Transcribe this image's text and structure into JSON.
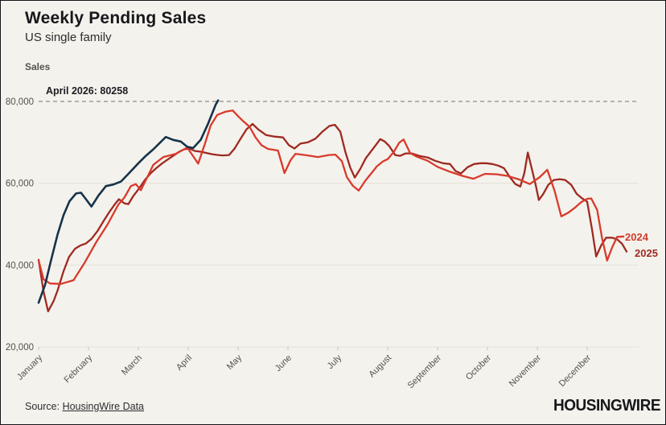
{
  "header": {
    "title": "Weekly Pending Sales",
    "subtitle": "US single family"
  },
  "annotation_label": "April 2026: 80258",
  "footer": {
    "source_prefix": "Source: ",
    "source_link_text": "HousingWire Data",
    "logo_text": "HOUSINGWIRE"
  },
  "colors": {
    "background": "#f4f2ec",
    "border": "#15151a",
    "gridline": "#e4e1da",
    "dashed_reference": "#8f8c86",
    "axis_text": "#55524c",
    "series_2026": "#16334a",
    "series_2024": "#d93a2d",
    "series_2025": "#9e2a22"
  },
  "chart_data": {
    "type": "line",
    "title": "Weekly Pending Sales",
    "subtitle": "US single family",
    "ylabel": "Sales",
    "xlabel": "",
    "ylim": [
      20000,
      83500
    ],
    "yticks": [
      20000,
      40000,
      60000,
      80000
    ],
    "ytick_labels": [
      "20,000",
      "40,000",
      "60,000",
      "80,000"
    ],
    "x_unit": "month (0 = Jan 1, fractional = weeks within year)",
    "xtick_labels": [
      "January",
      "February",
      "March",
      "April",
      "May",
      "June",
      "July",
      "August",
      "September",
      "October",
      "November",
      "December"
    ],
    "grid": "horizontal only",
    "legend_position": "inline end-of-line labels",
    "reference_line": {
      "value": 80000,
      "style": "dashed",
      "label": "April 2026: 80258",
      "annotated_point": 80258
    },
    "series": [
      {
        "name": "2025",
        "end_label": "2025",
        "color": "#9e2a22",
        "points": [
          [
            0.0,
            41300
          ],
          [
            0.1,
            33500
          ],
          [
            0.19,
            28700
          ],
          [
            0.3,
            31200
          ],
          [
            0.38,
            33800
          ],
          [
            0.5,
            38500
          ],
          [
            0.61,
            42000
          ],
          [
            0.73,
            44000
          ],
          [
            0.84,
            44800
          ],
          [
            0.95,
            45300
          ],
          [
            1.06,
            46400
          ],
          [
            1.18,
            48300
          ],
          [
            1.3,
            50700
          ],
          [
            1.42,
            53000
          ],
          [
            1.53,
            54900
          ],
          [
            1.61,
            56100
          ],
          [
            1.72,
            55100
          ],
          [
            1.8,
            54900
          ],
          [
            1.9,
            56900
          ],
          [
            2.02,
            58800
          ],
          [
            2.13,
            60800
          ],
          [
            2.25,
            62500
          ],
          [
            2.36,
            63700
          ],
          [
            2.48,
            64900
          ],
          [
            2.6,
            65900
          ],
          [
            2.7,
            66700
          ],
          [
            2.82,
            67700
          ],
          [
            2.92,
            68300
          ],
          [
            3.02,
            68500
          ],
          [
            3.13,
            67900
          ],
          [
            3.25,
            67700
          ],
          [
            3.37,
            67400
          ],
          [
            3.48,
            67100
          ],
          [
            3.6,
            66900
          ],
          [
            3.7,
            66800
          ],
          [
            3.82,
            66900
          ],
          [
            3.93,
            68500
          ],
          [
            4.05,
            70900
          ],
          [
            4.17,
            73200
          ],
          [
            4.29,
            74500
          ],
          [
            4.4,
            73200
          ],
          [
            4.56,
            71800
          ],
          [
            4.73,
            71400
          ],
          [
            4.9,
            71200
          ],
          [
            5.02,
            69300
          ],
          [
            5.13,
            68500
          ],
          [
            5.25,
            69700
          ],
          [
            5.4,
            70000
          ],
          [
            5.55,
            70900
          ],
          [
            5.7,
            72700
          ],
          [
            5.83,
            74000
          ],
          [
            5.94,
            74300
          ],
          [
            6.05,
            72600
          ],
          [
            6.15,
            67700
          ],
          [
            6.25,
            63800
          ],
          [
            6.34,
            61400
          ],
          [
            6.45,
            63500
          ],
          [
            6.56,
            66100
          ],
          [
            6.66,
            67700
          ],
          [
            6.76,
            69300
          ],
          [
            6.85,
            70800
          ],
          [
            6.94,
            70200
          ],
          [
            7.03,
            69100
          ],
          [
            7.15,
            66900
          ],
          [
            7.25,
            66700
          ],
          [
            7.36,
            67300
          ],
          [
            7.48,
            67300
          ],
          [
            7.63,
            66700
          ],
          [
            7.8,
            66300
          ],
          [
            7.95,
            65500
          ],
          [
            8.11,
            64900
          ],
          [
            8.25,
            64700
          ],
          [
            8.36,
            63000
          ],
          [
            8.47,
            62400
          ],
          [
            8.6,
            63900
          ],
          [
            8.73,
            64700
          ],
          [
            8.86,
            64900
          ],
          [
            8.98,
            64900
          ],
          [
            9.1,
            64700
          ],
          [
            9.22,
            64300
          ],
          [
            9.33,
            63700
          ],
          [
            9.45,
            61500
          ],
          [
            9.56,
            59800
          ],
          [
            9.66,
            59200
          ],
          [
            9.74,
            62500
          ],
          [
            9.81,
            67500
          ],
          [
            9.89,
            63500
          ],
          [
            9.97,
            59500
          ],
          [
            10.03,
            55900
          ],
          [
            10.12,
            57400
          ],
          [
            10.22,
            59600
          ],
          [
            10.33,
            60800
          ],
          [
            10.45,
            61000
          ],
          [
            10.56,
            60800
          ],
          [
            10.68,
            59600
          ],
          [
            10.79,
            57400
          ],
          [
            10.9,
            56300
          ],
          [
            11.0,
            55500
          ],
          [
            11.1,
            48500
          ],
          [
            11.18,
            42100
          ],
          [
            11.28,
            44800
          ],
          [
            11.38,
            46700
          ],
          [
            11.5,
            46700
          ],
          [
            11.6,
            46300
          ],
          [
            11.7,
            45200
          ],
          [
            11.79,
            43300
          ]
        ]
      },
      {
        "name": "2024",
        "end_label": "2024",
        "color": "#d93a2d",
        "points": [
          [
            0.0,
            41100
          ],
          [
            0.1,
            36500
          ],
          [
            0.23,
            35500
          ],
          [
            0.45,
            35400
          ],
          [
            0.7,
            36300
          ],
          [
            0.92,
            40500
          ],
          [
            1.15,
            45500
          ],
          [
            1.38,
            49900
          ],
          [
            1.6,
            54800
          ],
          [
            1.72,
            56500
          ],
          [
            1.85,
            59300
          ],
          [
            1.95,
            59800
          ],
          [
            2.05,
            58300
          ],
          [
            2.18,
            61500
          ],
          [
            2.3,
            64500
          ],
          [
            2.5,
            66400
          ],
          [
            2.75,
            67200
          ],
          [
            2.98,
            68700
          ],
          [
            3.1,
            66600
          ],
          [
            3.2,
            64800
          ],
          [
            3.33,
            69500
          ],
          [
            3.45,
            74100
          ],
          [
            3.58,
            76700
          ],
          [
            3.75,
            77500
          ],
          [
            3.89,
            77800
          ],
          [
            4.0,
            76400
          ],
          [
            4.1,
            75200
          ],
          [
            4.23,
            73800
          ],
          [
            4.35,
            71200
          ],
          [
            4.47,
            69300
          ],
          [
            4.6,
            68400
          ],
          [
            4.8,
            68000
          ],
          [
            4.93,
            62500
          ],
          [
            5.05,
            65600
          ],
          [
            5.15,
            67200
          ],
          [
            5.4,
            66800
          ],
          [
            5.6,
            66400
          ],
          [
            5.82,
            66900
          ],
          [
            5.95,
            67000
          ],
          [
            6.08,
            65400
          ],
          [
            6.18,
            61500
          ],
          [
            6.3,
            59400
          ],
          [
            6.42,
            58200
          ],
          [
            6.55,
            60600
          ],
          [
            6.67,
            62400
          ],
          [
            6.78,
            64100
          ],
          [
            6.9,
            65300
          ],
          [
            7.0,
            65900
          ],
          [
            7.12,
            67600
          ],
          [
            7.23,
            69900
          ],
          [
            7.32,
            70700
          ],
          [
            7.45,
            67400
          ],
          [
            7.58,
            66500
          ],
          [
            7.8,
            65500
          ],
          [
            8.0,
            64000
          ],
          [
            8.25,
            62800
          ],
          [
            8.5,
            61800
          ],
          [
            8.72,
            61100
          ],
          [
            8.95,
            62300
          ],
          [
            9.18,
            62200
          ],
          [
            9.4,
            61800
          ],
          [
            9.62,
            61000
          ],
          [
            9.85,
            59800
          ],
          [
            10.05,
            61500
          ],
          [
            10.2,
            63300
          ],
          [
            10.35,
            58000
          ],
          [
            10.48,
            51900
          ],
          [
            10.62,
            52800
          ],
          [
            10.75,
            54000
          ],
          [
            10.88,
            55400
          ],
          [
            11.0,
            56200
          ],
          [
            11.08,
            56300
          ],
          [
            11.2,
            53500
          ],
          [
            11.3,
            46500
          ],
          [
            11.4,
            41100
          ],
          [
            11.5,
            44300
          ],
          [
            11.6,
            46900
          ],
          [
            11.73,
            47000
          ]
        ]
      },
      {
        "name": "2026",
        "end_label": "",
        "color": "#16334a",
        "points": [
          [
            0.0,
            30800
          ],
          [
            0.13,
            35200
          ],
          [
            0.25,
            41200
          ],
          [
            0.38,
            47500
          ],
          [
            0.5,
            52200
          ],
          [
            0.62,
            55600
          ],
          [
            0.75,
            57500
          ],
          [
            0.85,
            57700
          ],
          [
            0.95,
            56100
          ],
          [
            1.06,
            54300
          ],
          [
            1.2,
            57000
          ],
          [
            1.35,
            59300
          ],
          [
            1.5,
            59700
          ],
          [
            1.65,
            60400
          ],
          [
            1.8,
            62300
          ],
          [
            2.0,
            64900
          ],
          [
            2.15,
            66700
          ],
          [
            2.3,
            68300
          ],
          [
            2.45,
            70100
          ],
          [
            2.55,
            71300
          ],
          [
            2.7,
            70600
          ],
          [
            2.85,
            70200
          ],
          [
            2.98,
            68900
          ],
          [
            3.1,
            68600
          ],
          [
            3.25,
            70600
          ],
          [
            3.4,
            74600
          ],
          [
            3.55,
            79200
          ],
          [
            3.6,
            80258
          ]
        ]
      }
    ]
  }
}
